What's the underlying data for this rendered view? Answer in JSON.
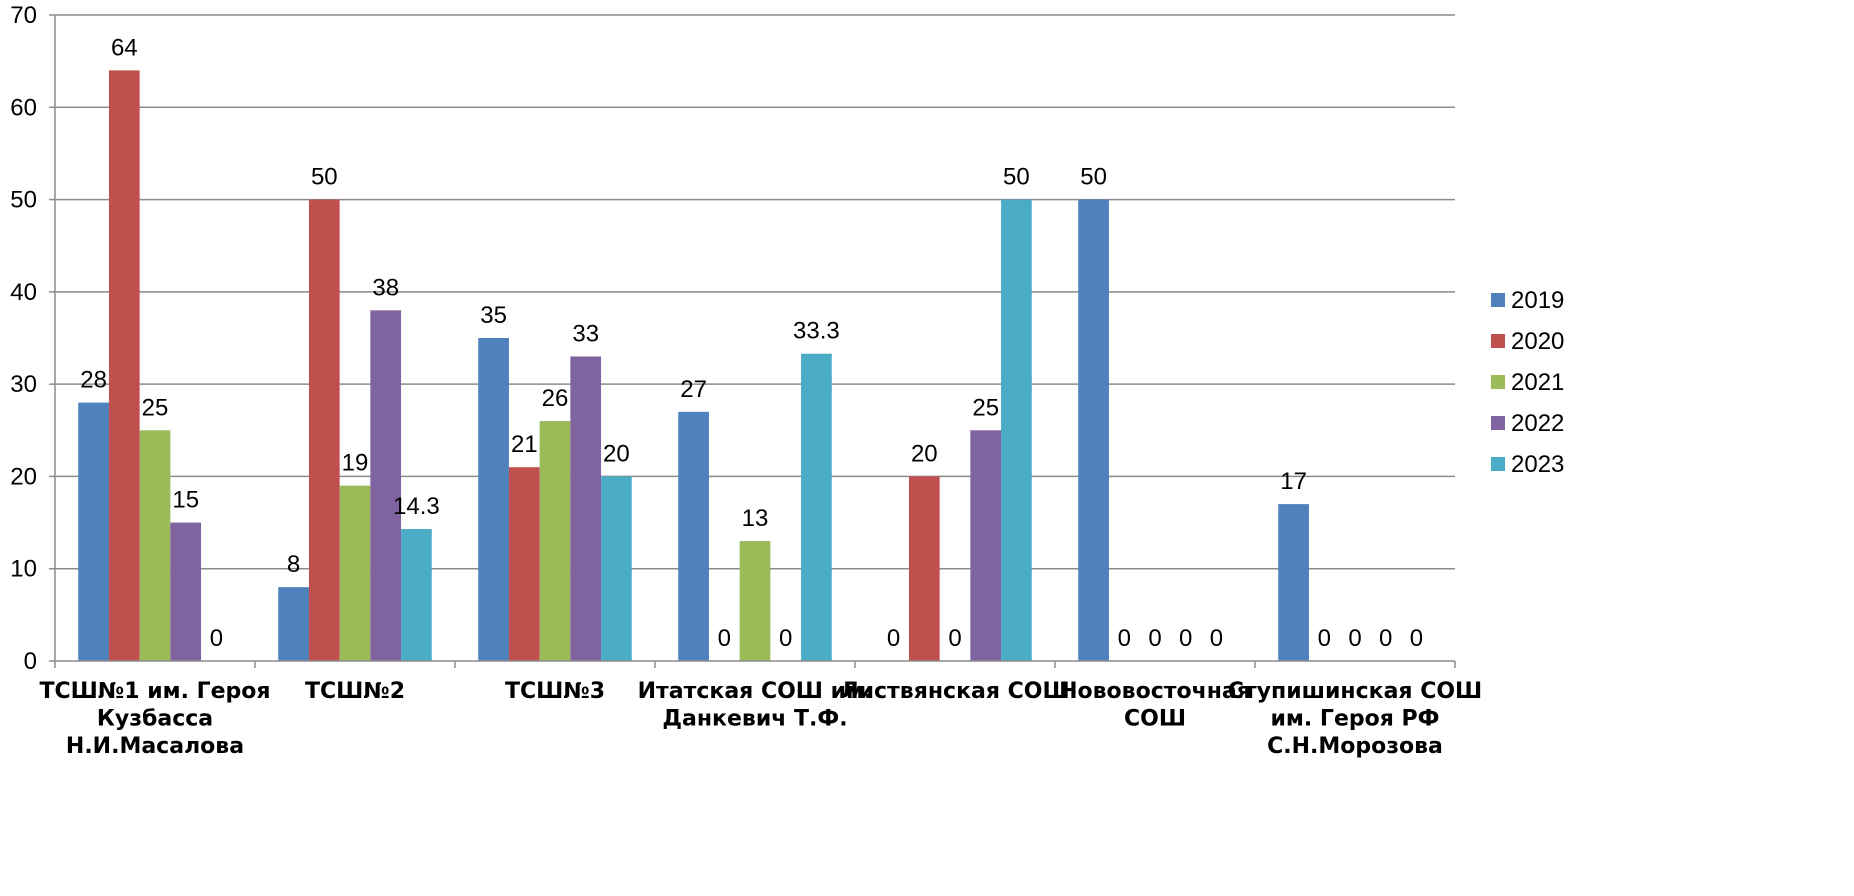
{
  "chart_data": {
    "type": "bar",
    "categories": [
      [
        "ТСШ№1 им. Героя",
        "Кузбасса",
        "Н.И.Масалова"
      ],
      [
        "ТСШ№2"
      ],
      [
        "ТСШ№3"
      ],
      [
        "Итатская СОШ им.",
        "Данкевич Т.Ф."
      ],
      [
        "Листвянская СОШ"
      ],
      [
        "Нововосточная",
        "СОШ"
      ],
      [
        "Ступишинская СОШ",
        "им. Героя РФ",
        "С.Н.Морозова"
      ]
    ],
    "series": [
      {
        "name": "2019",
        "color": "#4F81BD",
        "values": [
          28,
          8,
          35,
          27,
          0,
          50,
          17
        ]
      },
      {
        "name": "2020",
        "color": "#C0504D",
        "values": [
          64,
          50,
          21,
          0,
          20,
          0,
          0
        ]
      },
      {
        "name": "2021",
        "color": "#9BBB59",
        "values": [
          25,
          19,
          26,
          13,
          0,
          0,
          0
        ]
      },
      {
        "name": "2022",
        "color": "#8064A2",
        "values": [
          15,
          38,
          33,
          0,
          25,
          0,
          0
        ]
      },
      {
        "name": "2023",
        "color": "#4BACC6",
        "values": [
          0,
          14.3,
          20,
          33.3,
          50,
          null,
          null
        ]
      }
    ],
    "data_labels": [
      [
        "28",
        "64",
        "25",
        "15",
        "0"
      ],
      [
        "8",
        "50",
        "19",
        "38",
        "14.3"
      ],
      [
        "35",
        "21",
        "26",
        "33",
        "20"
      ],
      [
        "27",
        "0",
        "13",
        "0",
        "33.3"
      ],
      [
        "0",
        "20",
        "0",
        "25",
        "50"
      ],
      [
        "50",
        "0",
        "0",
        "0",
        "0"
      ],
      [
        "17",
        "0",
        "0",
        "0",
        "0"
      ]
    ],
    "ylim": [
      0,
      70
    ],
    "yticks": [
      0,
      10,
      20,
      30,
      40,
      50,
      60,
      70
    ],
    "grid": true,
    "legend_position": "right",
    "title": "",
    "xlabel": "",
    "ylabel": ""
  }
}
